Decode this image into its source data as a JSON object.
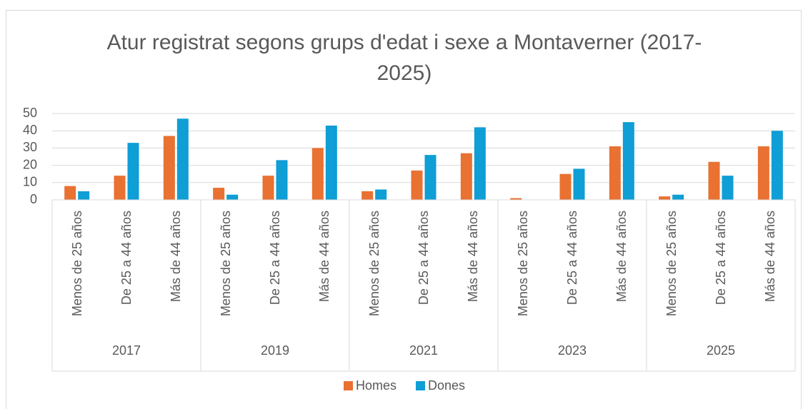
{
  "chart_data": {
    "type": "bar",
    "title": "Atur registrat segons grups d'edat i sexe a Montaverner (2017-2025)",
    "groups": [
      "2017",
      "2019",
      "2021",
      "2023",
      "2025"
    ],
    "categories": [
      "Menos de 25 años",
      "De 25 a 44 años",
      "Más de 44 años",
      "Menos de 25 años",
      "De 25 a 44 años",
      "Más de 44 años",
      "Menos de 25 años",
      "De 25 a 44 años",
      "Más de 44 años",
      "Menos de 25 años",
      "De 25 a 44 años",
      "Más de 44 años",
      "Menos de 25 años",
      "De 25 a 44 años",
      "Más de 44 años"
    ],
    "series": [
      {
        "name": "Homes",
        "color": "#e97132",
        "values": [
          8,
          14,
          37,
          7,
          14,
          30,
          5,
          17,
          27,
          1,
          15,
          31,
          2,
          22,
          31
        ]
      },
      {
        "name": "Dones",
        "color": "#0f9ed5",
        "values": [
          5,
          33,
          47,
          3,
          23,
          43,
          6,
          26,
          42,
          0,
          18,
          45,
          3,
          14,
          40
        ]
      }
    ],
    "ylim": [
      0,
      50
    ],
    "yticks": [
      0,
      10,
      20,
      30,
      40,
      50
    ],
    "grid": true,
    "legend": "bottom"
  }
}
